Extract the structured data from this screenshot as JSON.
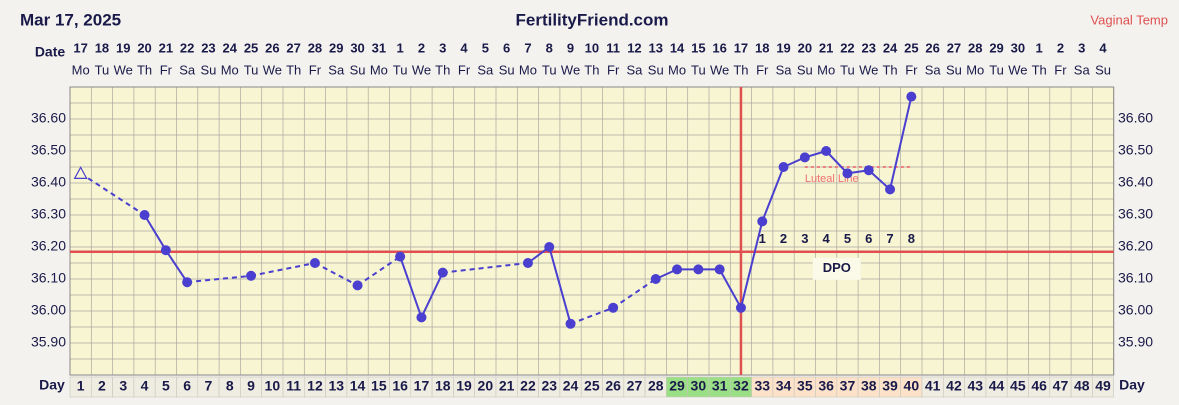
{
  "chart_data": {
    "type": "line",
    "title": "FertilityFriend.com",
    "date": "Mar 17, 2025",
    "temp_label": "Vaginal Temp",
    "date_label": "Date",
    "day_label": "Day",
    "dates": [
      "17",
      "18",
      "19",
      "20",
      "21",
      "22",
      "23",
      "24",
      "25",
      "26",
      "27",
      "28",
      "29",
      "30",
      "31",
      "1",
      "2",
      "3",
      "4",
      "5",
      "6",
      "7",
      "8",
      "9",
      "10",
      "11",
      "12",
      "13",
      "14",
      "15",
      "16",
      "17",
      "18",
      "19",
      "20",
      "21",
      "22",
      "23",
      "24",
      "25",
      "26",
      "27",
      "28",
      "29",
      "30",
      "1",
      "2",
      "3",
      "4"
    ],
    "weekdays": [
      "Mo",
      "Tu",
      "We",
      "Th",
      "Fr",
      "Sa",
      "Su",
      "Mo",
      "Tu",
      "We",
      "Th",
      "Fr",
      "Sa",
      "Su",
      "Mo",
      "Tu",
      "We",
      "Th",
      "Fr",
      "Sa",
      "Su",
      "Mo",
      "Tu",
      "We",
      "Th",
      "Fr",
      "Sa",
      "Su",
      "Mo",
      "Tu",
      "We",
      "Th",
      "Fr",
      "Sa",
      "Su",
      "Mo",
      "Tu",
      "We",
      "Th",
      "Fr",
      "Sa",
      "Su",
      "Mo",
      "Tu",
      "We",
      "Th",
      "Fr",
      "Sa",
      "Su"
    ],
    "x": [
      1,
      2,
      3,
      4,
      5,
      6,
      7,
      8,
      9,
      10,
      11,
      12,
      13,
      14,
      15,
      16,
      17,
      18,
      19,
      20,
      21,
      22,
      23,
      24,
      25,
      26,
      27,
      28,
      29,
      30,
      31,
      32,
      33,
      34,
      35,
      36,
      37,
      38,
      39,
      40,
      41,
      42,
      43,
      44,
      45,
      46,
      47,
      48,
      49
    ],
    "values": [
      36.43,
      null,
      null,
      36.3,
      36.19,
      36.09,
      null,
      null,
      36.11,
      null,
      null,
      36.15,
      null,
      36.08,
      null,
      36.17,
      35.98,
      36.12,
      null,
      null,
      null,
      36.15,
      36.2,
      35.96,
      null,
      36.01,
      null,
      36.1,
      36.13,
      36.13,
      36.13,
      36.01,
      36.28,
      36.45,
      36.48,
      36.5,
      36.43,
      36.44,
      36.38,
      36.67,
      null,
      null,
      null,
      null,
      null,
      null,
      null,
      null,
      null
    ],
    "open_points": [
      1
    ],
    "color": "#4a3fcf",
    "ylim": [
      35.8,
      36.7
    ],
    "yticks": [
      {
        "value": 35.9,
        "label": "35.90"
      },
      {
        "value": 36.0,
        "label": "36.00"
      },
      {
        "value": 36.1,
        "label": "36.10"
      },
      {
        "value": 36.2,
        "label": "36.20"
      },
      {
        "value": 36.3,
        "label": "36.30"
      },
      {
        "value": 36.4,
        "label": "36.40"
      },
      {
        "value": 36.5,
        "label": "36.50"
      },
      {
        "value": 36.6,
        "label": "36.60"
      }
    ],
    "minor_yticks": [
      35.85,
      35.95,
      36.05,
      36.15,
      36.25,
      36.35,
      36.45,
      36.55,
      36.65
    ],
    "coverline": 36.185,
    "ovulation_day": 32,
    "luteal_line": {
      "label": "Luteal Line",
      "value": 36.45,
      "from": 35,
      "to": 40
    },
    "dpo_label": "DPO",
    "dpo": [
      null,
      null,
      null,
      null,
      null,
      null,
      null,
      null,
      null,
      null,
      null,
      null,
      null,
      null,
      null,
      null,
      null,
      null,
      null,
      null,
      null,
      null,
      null,
      null,
      null,
      null,
      null,
      null,
      null,
      null,
      null,
      null,
      1,
      2,
      3,
      4,
      5,
      6,
      7,
      8,
      null,
      null,
      null,
      null,
      null,
      null,
      null,
      null,
      null
    ],
    "phase_cells": [
      {
        "from": 29,
        "to": 32,
        "color": "#9ade86"
      },
      {
        "from": 33,
        "to": 40,
        "color": "#fbe2c9"
      }
    ],
    "grid": true
  }
}
